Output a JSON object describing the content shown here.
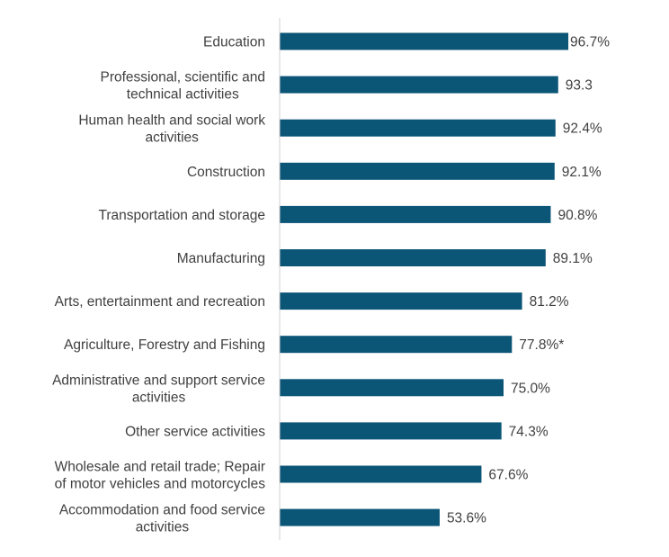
{
  "chart_data": {
    "type": "bar",
    "orientation": "horizontal",
    "title": "",
    "xlabel": "",
    "ylabel": "",
    "xlim": [
      0,
      100
    ],
    "grid": false,
    "bar_color": "#0b5576",
    "categories": [
      [
        "Education"
      ],
      [
        "Professional, scientific and",
        "technical activities"
      ],
      [
        "Human health and social work",
        "activities"
      ],
      [
        "Construction"
      ],
      [
        "Transportation and storage"
      ],
      [
        "Manufacturing"
      ],
      [
        "Arts, entertainment and recreation"
      ],
      [
        "Agriculture, Forestry and Fishing"
      ],
      [
        "Administrative and support service",
        "activities"
      ],
      [
        "Other service activities"
      ],
      [
        "Wholesale and retail trade; Repair",
        "of motor vehicles and motorcycles"
      ],
      [
        "Accommodation and food service",
        "activities"
      ]
    ],
    "values": [
      96.7,
      93.3,
      92.4,
      92.1,
      90.8,
      89.1,
      81.2,
      77.8,
      75.0,
      74.3,
      67.6,
      53.6
    ],
    "data_labels": [
      "96.7%",
      "93.3",
      "92.4%",
      "92.1%",
      "90.8%",
      "89.1%",
      "81.2%",
      "77.8%*",
      "75.0%",
      "74.3%",
      "67.6%",
      "53.6%"
    ]
  }
}
